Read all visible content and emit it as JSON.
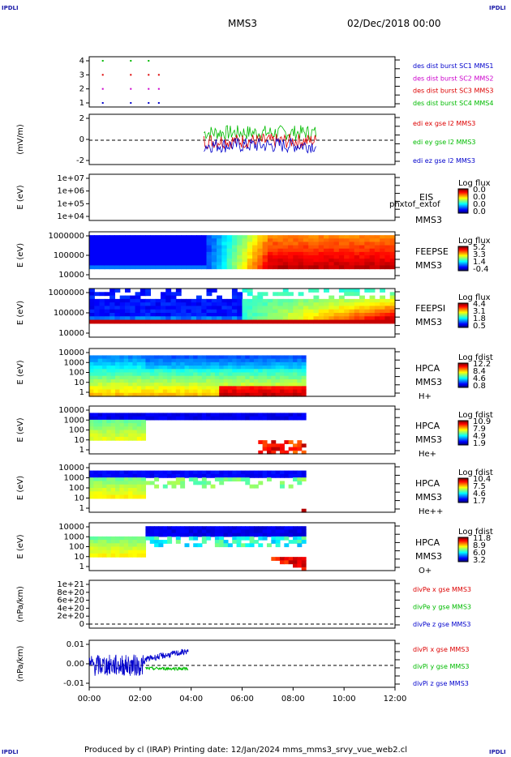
{
  "corner_label": "IPDLI",
  "header": {
    "spacecraft": "MMS3",
    "datetime": "02/Dec/2018 00:00"
  },
  "footer": "Produced by cl (IRAP)   Printing date: 12/Jan/2024   mms_mms3_srvy_vue_web2.cl",
  "colors": {
    "red": "#dd0000",
    "green": "#00bb00",
    "blue": "#0000cc",
    "magenta": "#cc00cc"
  },
  "chart_data": [
    {
      "type": "scatter",
      "panel": "burst-availability",
      "yticks": [
        "1",
        "2",
        "3",
        "4"
      ],
      "legend": [
        {
          "label": "des dist burst SC1 MMS1",
          "color": "#0000cc"
        },
        {
          "label": "des dist burst SC2 MMS2",
          "color": "#cc00cc"
        },
        {
          "label": "des dist burst SC3 MMS3",
          "color": "#dd0000"
        },
        {
          "label": "des dist burst SC4 MMS4",
          "color": "#00bb00"
        }
      ]
    },
    {
      "type": "line",
      "panel": "edi-e-field",
      "ylabel": "(mV/m)",
      "yticks": [
        "2",
        "0",
        "-2"
      ],
      "ylim": [
        -3,
        3
      ],
      "legend": [
        {
          "label": "edi ex gse l2 MMS3",
          "color": "#dd0000"
        },
        {
          "label": "edi ey gse l2 MMS3",
          "color": "#00bb00"
        },
        {
          "label": "edi ez gse l2 MMS3",
          "color": "#0000cc"
        }
      ]
    },
    {
      "type": "heatmap",
      "panel": "eis",
      "ylabel": "E (eV)",
      "yticks": [
        "1e+07",
        "1e+06",
        "1e+05",
        "1e+04"
      ],
      "instrument": "EIS",
      "overlay_text": "phxtof_extof",
      "spacecraft": "MMS3",
      "cbar_title": "Log flux",
      "cbar_ticks": [
        "0.0",
        "0.0",
        "0.0",
        "0.0"
      ]
    },
    {
      "type": "heatmap",
      "panel": "feeps-electron",
      "ylabel": "E (eV)",
      "yticks": [
        "1000000",
        "100000",
        "10000"
      ],
      "instrument": "FEEPSE",
      "spacecraft": "MMS3",
      "cbar_title": "Log flux",
      "cbar_ticks": [
        "5.2",
        "3.3",
        "1.4",
        "-0.4"
      ]
    },
    {
      "type": "heatmap",
      "panel": "feeps-ion",
      "ylabel": "E (eV)",
      "yticks": [
        "1000000",
        "100000",
        "10000"
      ],
      "instrument": "FEEPSI",
      "spacecraft": "MMS3",
      "cbar_title": "Log flux",
      "cbar_ticks": [
        "4.4",
        "3.1",
        "1.8",
        "0.5"
      ]
    },
    {
      "type": "heatmap",
      "panel": "hpca-h",
      "ylabel": "E (eV)",
      "yticks": [
        "10000",
        "1000",
        "100",
        "10",
        "1"
      ],
      "instrument": "HPCA",
      "spacecraft": "MMS3",
      "species": "H+",
      "cbar_title": "Log fdist",
      "cbar_ticks": [
        "12.2",
        "8.4",
        "4.6",
        "0.8"
      ]
    },
    {
      "type": "heatmap",
      "panel": "hpca-he",
      "ylabel": "E (eV)",
      "yticks": [
        "10000",
        "1000",
        "100",
        "10",
        "1"
      ],
      "instrument": "HPCA",
      "spacecraft": "MMS3",
      "species": "He+",
      "cbar_title": "Log fdist",
      "cbar_ticks": [
        "10.9",
        "7.9",
        "4.9",
        "1.9"
      ]
    },
    {
      "type": "heatmap",
      "panel": "hpca-hepp",
      "ylabel": "E (eV)",
      "yticks": [
        "10000",
        "1000",
        "100",
        "10",
        "1"
      ],
      "instrument": "HPCA",
      "spacecraft": "MMS3",
      "species": "He++",
      "cbar_title": "Log fdist",
      "cbar_ticks": [
        "10.4",
        "7.5",
        "4.6",
        "1.7"
      ]
    },
    {
      "type": "heatmap",
      "panel": "hpca-o",
      "ylabel": "E (eV)",
      "yticks": [
        "10000",
        "1000",
        "100",
        "10",
        "1"
      ],
      "instrument": "HPCA",
      "spacecraft": "MMS3",
      "species": "O+",
      "cbar_title": "Log fdist",
      "cbar_ticks": [
        "11.8",
        "8.9",
        "6.0",
        "3.2"
      ]
    },
    {
      "type": "line",
      "panel": "divpe",
      "ylabel": "(nPa/km)",
      "yticks": [
        "1e+21",
        "8e+20",
        "6e+20",
        "4e+20",
        "2e+20",
        "0"
      ],
      "ylim": [
        0,
        1.05e+21
      ],
      "legend": [
        {
          "label": "divPe x gse MMS3",
          "color": "#dd0000"
        },
        {
          "label": "divPe y gse MMS3",
          "color": "#00bb00"
        },
        {
          "label": "divPe z gse MMS3",
          "color": "#0000cc"
        }
      ]
    },
    {
      "type": "line",
      "panel": "divpi",
      "ylabel": "(nPa/km)",
      "yticks": [
        "0.01",
        "0.00",
        "-0.01"
      ],
      "ylim": [
        -0.015,
        0.015
      ],
      "legend": [
        {
          "label": "divPi x gse MMS3",
          "color": "#dd0000"
        },
        {
          "label": "divPi y gse MMS3",
          "color": "#00bb00"
        },
        {
          "label": "divPi z gse MMS3",
          "color": "#0000cc"
        }
      ]
    }
  ],
  "xaxis": {
    "ticks": [
      "00:00",
      "02:00",
      "04:00",
      "06:00",
      "08:00",
      "10:00",
      "12:00"
    ],
    "range_hours": [
      0,
      12
    ]
  }
}
